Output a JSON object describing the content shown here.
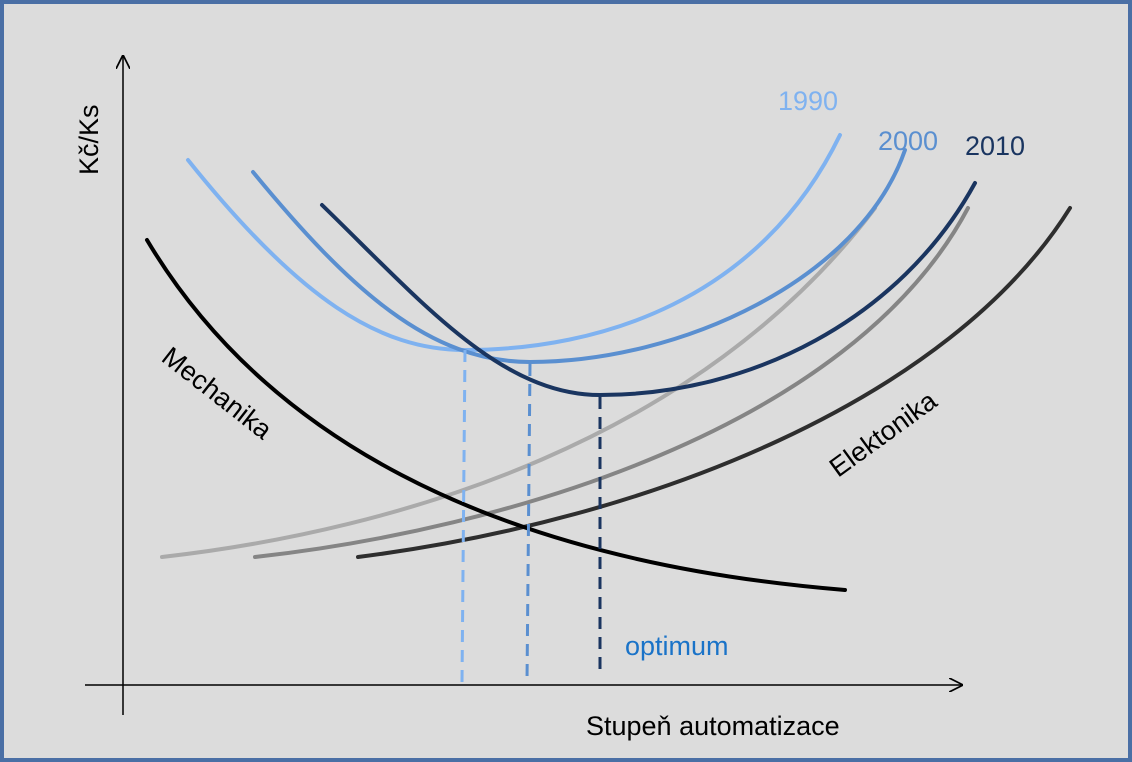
{
  "axes": {
    "y_label": "Kč/Ks",
    "x_label": "Stupeň automatizace"
  },
  "years": [
    "1990",
    "2000",
    "2010"
  ],
  "curves": {
    "mechanical": "Mechanika",
    "electronic": "Elektonika"
  },
  "optimum": "optimum"
}
